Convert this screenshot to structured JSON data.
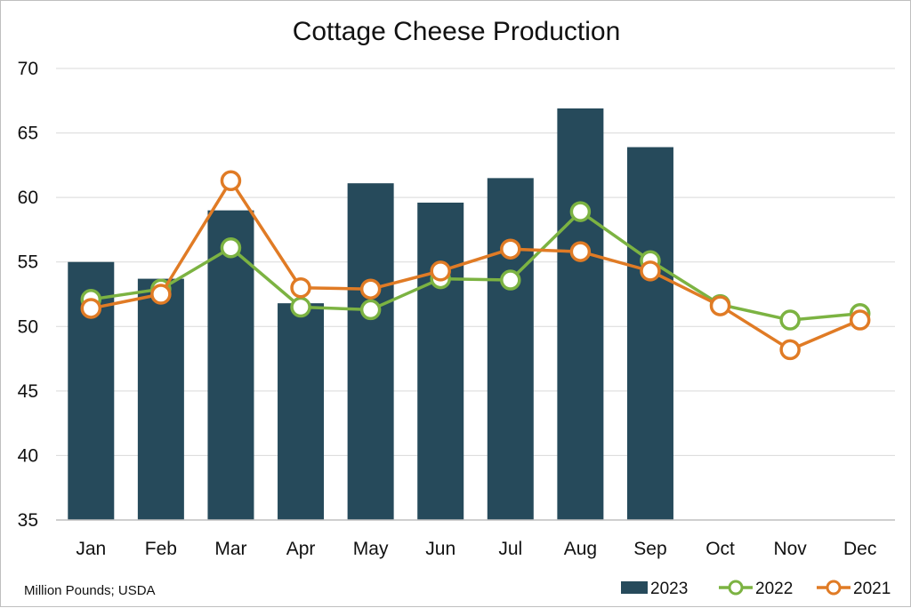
{
  "chart_data": {
    "type": "bar",
    "title": "Cottage Cheese Production",
    "categories": [
      "Jan",
      "Feb",
      "Mar",
      "Apr",
      "May",
      "Jun",
      "Jul",
      "Aug",
      "Sep",
      "Oct",
      "Nov",
      "Dec"
    ],
    "ylim": [
      35,
      70
    ],
    "yticks": [
      35,
      40,
      45,
      50,
      55,
      60,
      65,
      70
    ],
    "grid": true,
    "legend_position": "bottom-right",
    "series": [
      {
        "name": "2023",
        "type": "bar",
        "color": "#264a5b",
        "values": [
          55.0,
          53.7,
          59.0,
          51.8,
          61.1,
          59.6,
          61.5,
          66.9,
          63.9,
          null,
          null,
          null
        ]
      },
      {
        "name": "2022",
        "type": "line",
        "color": "#7cb342",
        "values": [
          52.1,
          52.9,
          56.1,
          51.5,
          51.3,
          53.7,
          53.6,
          58.9,
          55.1,
          51.7,
          50.5,
          51.0
        ]
      },
      {
        "name": "2021",
        "type": "line",
        "color": "#e07b25",
        "values": [
          51.4,
          52.5,
          61.3,
          53.0,
          52.9,
          54.3,
          56.0,
          55.8,
          54.3,
          51.6,
          48.2,
          50.5
        ]
      }
    ]
  },
  "source_note": "Million Pounds; USDA"
}
